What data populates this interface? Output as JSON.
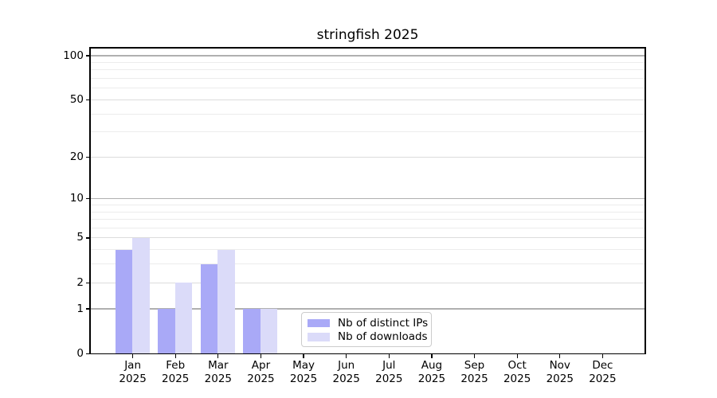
{
  "title": "stringfish 2025",
  "legend": {
    "items": [
      {
        "label": "Nb of distinct IPs",
        "color_key": "distinct_ips"
      },
      {
        "label": "Nb of downloads",
        "color_key": "downloads"
      }
    ]
  },
  "colors": {
    "distinct_ips": "#a9a9f7",
    "downloads": "#dbdbf9",
    "grid_decade": "#b0b0b0",
    "grid_labeled": "#dcdcdc",
    "grid_minor": "#ececec",
    "axis": "#000000"
  },
  "chart_data": {
    "type": "bar",
    "title": "stringfish 2025",
    "categories": [
      "Jan 2025",
      "Feb 2025",
      "Mar 2025",
      "Apr 2025",
      "May 2025",
      "Jun 2025",
      "Jul 2025",
      "Aug 2025",
      "Sep 2025",
      "Oct 2025",
      "Nov 2025",
      "Dec 2025"
    ],
    "series": [
      {
        "name": "Nb of distinct IPs",
        "values": [
          4,
          1,
          3,
          1,
          0,
          0,
          0,
          0,
          0,
          0,
          0,
          0
        ]
      },
      {
        "name": "Nb of downloads",
        "values": [
          5,
          2,
          4,
          1,
          0,
          0,
          0,
          0,
          0,
          0,
          0,
          0
        ]
      }
    ],
    "xlabel": "",
    "ylabel": "",
    "yscale": "log1p",
    "ylim": [
      0,
      113
    ],
    "yticks_labeled": [
      0,
      1,
      2,
      5,
      10,
      20,
      50,
      100
    ],
    "yticks_decade": [
      1,
      10,
      100
    ],
    "gridlines_minor": [
      3,
      4,
      6,
      7,
      8,
      9,
      30,
      40,
      60,
      70,
      80,
      90
    ],
    "grid": true,
    "legend_position": "inside lower center"
  }
}
